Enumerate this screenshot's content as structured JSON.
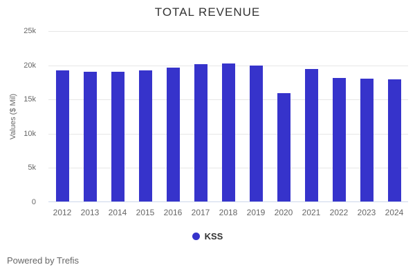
{
  "title": "TOTAL REVENUE",
  "ylabel": "Values ($ Mil)",
  "footer": "Powered by Trefis",
  "legend": {
    "label": "KSS"
  },
  "colors": {
    "bar": "#3633cb",
    "legend_dot": "#3633cb",
    "gridline": "#e6e6e6",
    "axis_line": "#ccd6eb",
    "tick_label": "#666666",
    "title": "#333333",
    "background": "#ffffff"
  },
  "chart_data": {
    "type": "bar",
    "title": "TOTAL REVENUE",
    "xlabel": "",
    "ylabel": "Values ($ Mil)",
    "categories": [
      "2012",
      "2013",
      "2014",
      "2015",
      "2016",
      "2017",
      "2018",
      "2019",
      "2020",
      "2021",
      "2022",
      "2023",
      "2024"
    ],
    "series": [
      {
        "name": "KSS",
        "values": [
          19250,
          19050,
          19000,
          19200,
          19650,
          20100,
          20250,
          19950,
          15900,
          19450,
          18100,
          18000,
          17900
        ]
      }
    ],
    "ylim": [
      0,
      25000
    ],
    "yticks": {
      "values": [
        0,
        5000,
        10000,
        15000,
        20000,
        25000
      ],
      "labels": [
        "0",
        "5k",
        "10k",
        "15k",
        "20k",
        "25k"
      ]
    },
    "grid": true,
    "legend_position": "bottom"
  }
}
